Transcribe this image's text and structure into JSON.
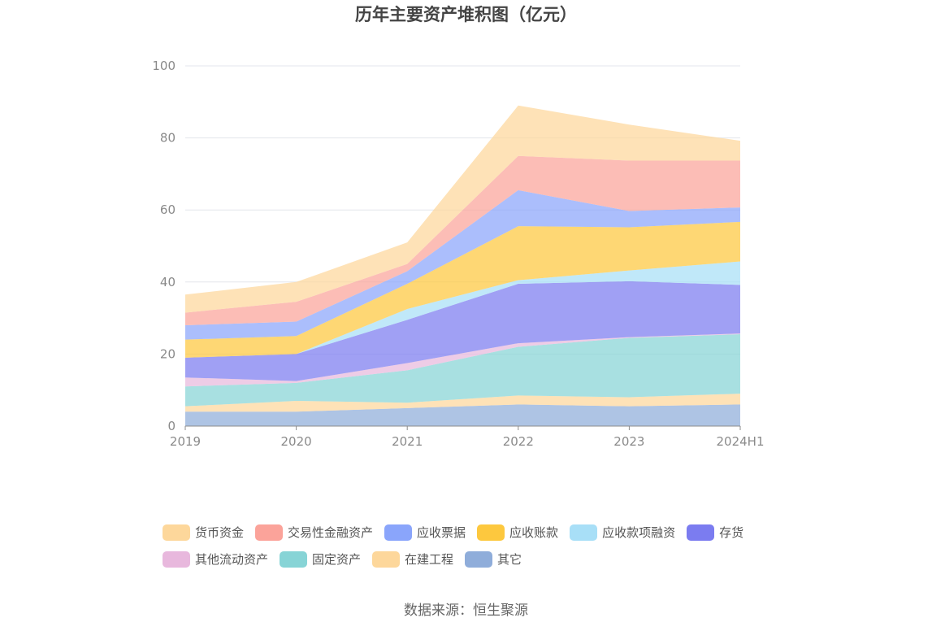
{
  "chart_data": {
    "type": "area",
    "stacked": true,
    "title": "历年主要资产堆积图（亿元）",
    "xlabel": "",
    "ylabel": "",
    "categories": [
      "2019",
      "2020",
      "2021",
      "2022",
      "2023",
      "2024H1"
    ],
    "ylim": [
      0,
      100
    ],
    "yticks": [
      0,
      20,
      40,
      60,
      80,
      100
    ],
    "grid": true,
    "legend_position": "bottom",
    "series": [
      {
        "name": "其它",
        "color": "#8fadda",
        "values": [
          4.0,
          4.0,
          5.0,
          6.0,
          5.5,
          6.0
        ]
      },
      {
        "name": "在建工程",
        "color": "#fdd79b",
        "values": [
          1.5,
          3.0,
          1.5,
          2.5,
          2.5,
          3.0
        ]
      },
      {
        "name": "固定资产",
        "color": "#87d4d6",
        "values": [
          5.5,
          5.0,
          9.0,
          13.5,
          16.5,
          16.5
        ]
      },
      {
        "name": "其他流动资产",
        "color": "#e8b8dd",
        "values": [
          2.5,
          0.5,
          2.0,
          1.0,
          0.2,
          0.2
        ]
      },
      {
        "name": "存货",
        "color": "#7b7cf0",
        "values": [
          5.5,
          7.5,
          12.0,
          16.5,
          15.5,
          13.5
        ]
      },
      {
        "name": "应收款项融资",
        "color": "#a8dff7",
        "values": [
          0.0,
          0.0,
          3.0,
          1.0,
          3.0,
          6.5
        ]
      },
      {
        "name": "应收账款",
        "color": "#fdc83e",
        "values": [
          5.0,
          5.0,
          7.0,
          15.0,
          12.0,
          11.0
        ]
      },
      {
        "name": "应收票据",
        "color": "#8aa5fb",
        "values": [
          4.0,
          4.0,
          3.5,
          10.0,
          4.5,
          4.0
        ]
      },
      {
        "name": "交易性金融资产",
        "color": "#fba39a",
        "values": [
          3.5,
          5.5,
          2.0,
          9.5,
          14.0,
          13.0
        ]
      },
      {
        "name": "货币资金",
        "color": "#fdd79b",
        "values": [
          5.0,
          5.5,
          6.0,
          14.0,
          10.0,
          5.5
        ]
      }
    ]
  },
  "legend": {
    "row1": [
      {
        "label": "货币资金",
        "color": "#fdd79b"
      },
      {
        "label": "交易性金融资产",
        "color": "#fba39a"
      },
      {
        "label": "应收票据",
        "color": "#8aa5fb"
      },
      {
        "label": "应收账款",
        "color": "#fdc83e"
      },
      {
        "label": "应收款项融资",
        "color": "#a8dff7"
      },
      {
        "label": "存货",
        "color": "#7b7cf0"
      }
    ],
    "row2": [
      {
        "label": "其他流动资产",
        "color": "#e8b8dd"
      },
      {
        "label": "固定资产",
        "color": "#87d4d6"
      },
      {
        "label": "在建工程",
        "color": "#fdd79b"
      },
      {
        "label": "其它",
        "color": "#8fadda"
      }
    ]
  },
  "source": "数据来源：恒生聚源"
}
